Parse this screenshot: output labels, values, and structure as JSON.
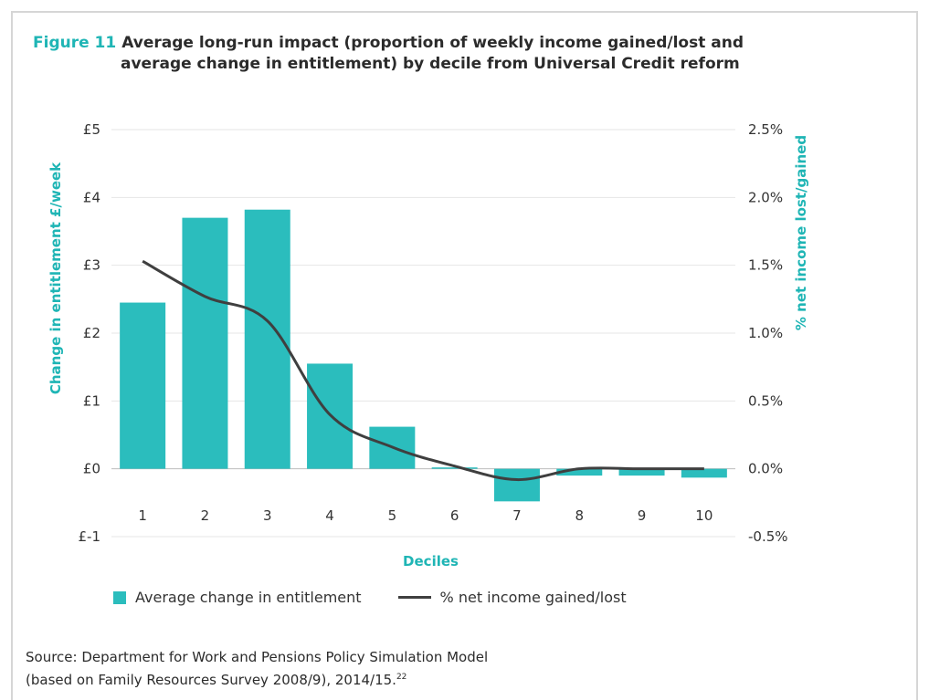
{
  "figure": {
    "label": "Figure 11",
    "title_line1": "Average long-run impact (proportion of weekly income gained/lost and",
    "title_line2": "average change in entitlement) by decile from Universal Credit reform"
  },
  "source": {
    "line1": "Source: Department for Work and Pensions Policy Simulation Model",
    "line2": "(based on Family Resources Survey 2008/9), 2014/15.",
    "footnote": "22"
  },
  "colors": {
    "bar": "#2bbdbd",
    "line": "#3f3f3f",
    "accent": "#1fb5b5",
    "grid": "#e6e6e6"
  },
  "chart_data": {
    "type": "bar",
    "categories": [
      "1",
      "2",
      "3",
      "4",
      "5",
      "6",
      "7",
      "8",
      "9",
      "10"
    ],
    "xlabel": "Deciles",
    "ylabel_left": "Change in entitlement £/week",
    "ylabel_right": "% net income lost/gained",
    "ylim_left": [
      -1,
      5
    ],
    "ylim_right": [
      -0.5,
      2.5
    ],
    "yticks_left": [
      "£-1",
      "£0",
      "£1",
      "£2",
      "£3",
      "£4",
      "£5"
    ],
    "yticks_right": [
      "-0.5%",
      "0.0%",
      "0.5%",
      "1.0%",
      "1.5%",
      "2.0%",
      "2.5%"
    ],
    "grid": true,
    "legend_position": "bottom",
    "series": [
      {
        "name": "Average change in entitlement",
        "type": "bar",
        "axis": "left",
        "values": [
          2.45,
          3.7,
          3.82,
          1.55,
          0.62,
          0.02,
          -0.48,
          -0.1,
          -0.1,
          -0.13
        ]
      },
      {
        "name": "% net income gained/lost",
        "type": "line",
        "axis": "right",
        "values": [
          1.53,
          1.27,
          1.09,
          0.4,
          0.16,
          0.02,
          -0.08,
          0.0,
          0.0,
          0.0
        ]
      }
    ]
  }
}
